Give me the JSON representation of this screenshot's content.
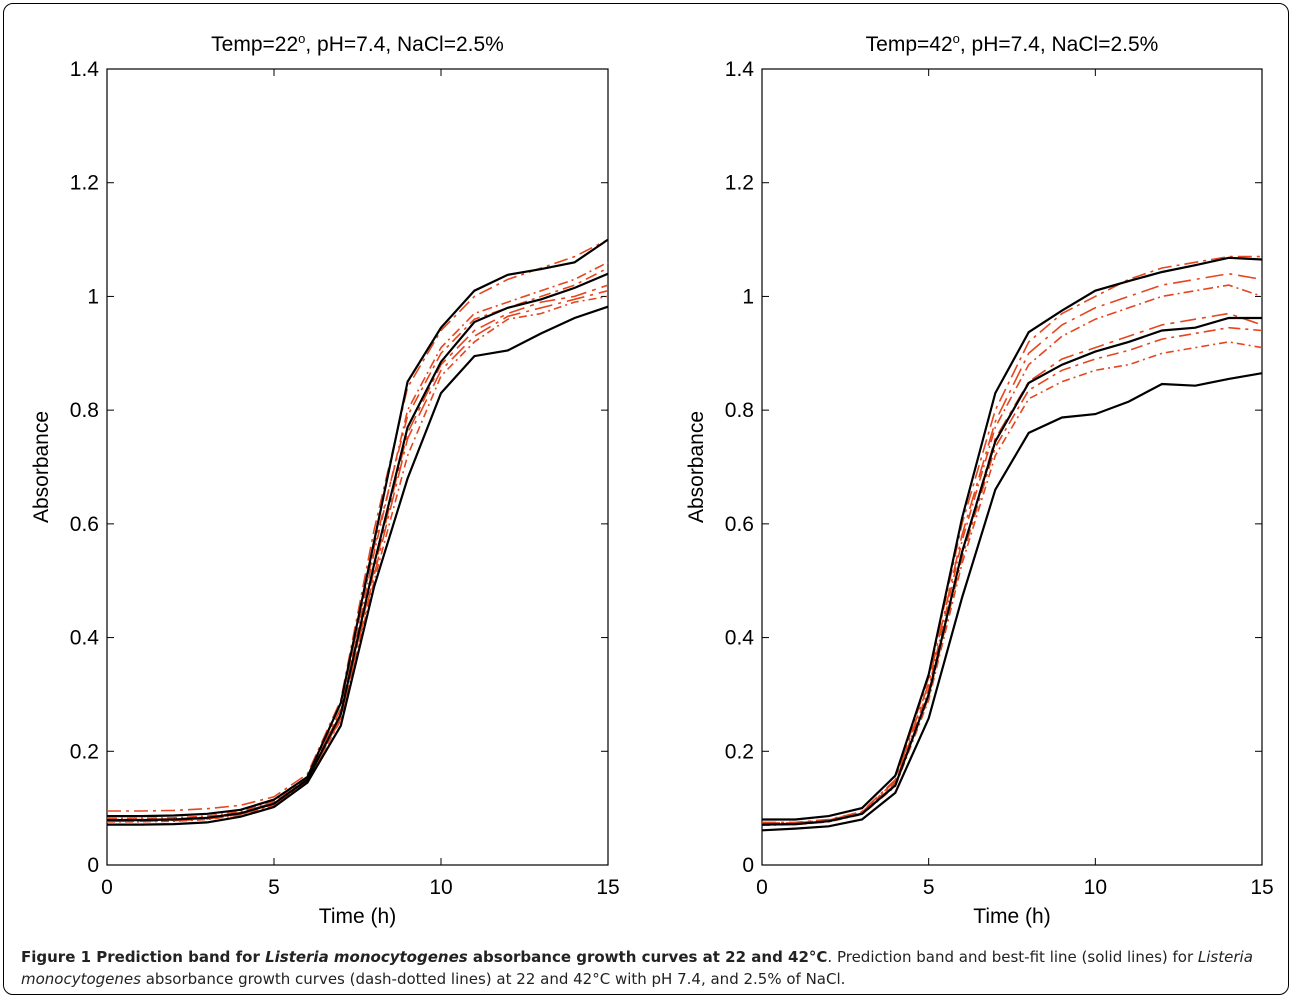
{
  "chart_data": [
    {
      "type": "line",
      "title_prefix": "Temp=22",
      "title_superscript": "o",
      "title_suffix": ", pH=7.4, NaCl=2.5%",
      "xlabel": "Time (h)",
      "ylabel": "Absorbance",
      "xlim": [
        0,
        15
      ],
      "ylim": [
        0,
        1.4
      ],
      "xticks": [
        "0",
        "5",
        "10",
        "15"
      ],
      "yticks": [
        "0",
        "0.2",
        "0.4",
        "0.6",
        "0.8",
        "1",
        "1.2",
        "1.4"
      ],
      "x": [
        0,
        1,
        2,
        3,
        4,
        5,
        6,
        7,
        8,
        9,
        10,
        11,
        12,
        13,
        14,
        15
      ],
      "upper_band": [
        0.086,
        0.086,
        0.087,
        0.09,
        0.097,
        0.115,
        0.155,
        0.285,
        0.57,
        0.85,
        0.945,
        1.01,
        1.038,
        1.048,
        1.06,
        1.1
      ],
      "best_fit": [
        0.079,
        0.079,
        0.08,
        0.083,
        0.091,
        0.108,
        0.15,
        0.265,
        0.53,
        0.77,
        0.885,
        0.955,
        0.98,
        0.995,
        1.015,
        1.04
      ],
      "lower_band": [
        0.071,
        0.071,
        0.072,
        0.075,
        0.085,
        0.102,
        0.145,
        0.245,
        0.49,
        0.68,
        0.83,
        0.895,
        0.905,
        0.935,
        0.962,
        0.982
      ],
      "curves": [
        [
          0.095,
          0.095,
          0.096,
          0.099,
          0.105,
          0.12,
          0.16,
          0.29,
          0.59,
          0.84,
          0.94,
          1.0,
          1.03,
          1.05,
          1.07,
          1.1
        ],
        [
          0.082,
          0.082,
          0.083,
          0.086,
          0.094,
          0.112,
          0.153,
          0.27,
          0.55,
          0.8,
          0.91,
          0.97,
          0.99,
          1.01,
          1.03,
          1.06
        ],
        [
          0.078,
          0.078,
          0.079,
          0.082,
          0.09,
          0.107,
          0.149,
          0.26,
          0.52,
          0.76,
          0.88,
          0.94,
          0.97,
          0.99,
          1.0,
          1.02
        ],
        [
          0.076,
          0.076,
          0.077,
          0.08,
          0.088,
          0.105,
          0.148,
          0.255,
          0.5,
          0.72,
          0.86,
          0.92,
          0.96,
          0.97,
          0.99,
          1.0
        ],
        [
          0.08,
          0.08,
          0.081,
          0.084,
          0.092,
          0.11,
          0.152,
          0.275,
          0.56,
          0.79,
          0.9,
          0.96,
          0.98,
          1.0,
          1.02,
          1.05
        ],
        [
          0.077,
          0.077,
          0.078,
          0.081,
          0.089,
          0.106,
          0.147,
          0.258,
          0.51,
          0.75,
          0.87,
          0.93,
          0.965,
          0.98,
          0.995,
          1.01
        ]
      ]
    },
    {
      "type": "line",
      "title_prefix": "Temp=42",
      "title_superscript": "o",
      "title_suffix": ", pH=7.4, NaCl=2.5%",
      "xlabel": "Time (h)",
      "ylabel": "Absorbance",
      "xlim": [
        0,
        15
      ],
      "ylim": [
        0,
        1.4
      ],
      "xticks": [
        "0",
        "5",
        "10",
        "15"
      ],
      "yticks": [
        "0",
        "0.2",
        "0.4",
        "0.6",
        "0.8",
        "1",
        "1.2",
        "1.4"
      ],
      "x": [
        0,
        1,
        2,
        3,
        4,
        5,
        6,
        7,
        8,
        9,
        10,
        11,
        12,
        13,
        14,
        15
      ],
      "upper_band": [
        0.08,
        0.08,
        0.086,
        0.1,
        0.157,
        0.335,
        0.61,
        0.83,
        0.937,
        0.975,
        1.01,
        1.027,
        1.043,
        1.055,
        1.068,
        1.065
      ],
      "best_fit": [
        0.071,
        0.072,
        0.077,
        0.09,
        0.14,
        0.3,
        0.55,
        0.745,
        0.848,
        0.88,
        0.903,
        0.92,
        0.94,
        0.945,
        0.962,
        0.962
      ],
      "lower_band": [
        0.061,
        0.064,
        0.068,
        0.08,
        0.127,
        0.258,
        0.47,
        0.66,
        0.76,
        0.787,
        0.793,
        0.815,
        0.846,
        0.843,
        0.855,
        0.865
      ],
      "curves": [
        [
          0.075,
          0.075,
          0.08,
          0.094,
          0.15,
          0.33,
          0.6,
          0.8,
          0.92,
          0.97,
          1.0,
          1.03,
          1.05,
          1.06,
          1.07,
          1.07
        ],
        [
          0.073,
          0.073,
          0.078,
          0.092,
          0.145,
          0.31,
          0.57,
          0.77,
          0.88,
          0.93,
          0.96,
          0.98,
          1.0,
          1.01,
          1.02,
          1.0
        ],
        [
          0.072,
          0.072,
          0.077,
          0.091,
          0.142,
          0.3,
          0.55,
          0.75,
          0.85,
          0.89,
          0.91,
          0.93,
          0.95,
          0.96,
          0.97,
          0.95
        ],
        [
          0.07,
          0.071,
          0.076,
          0.089,
          0.138,
          0.29,
          0.53,
          0.72,
          0.82,
          0.85,
          0.87,
          0.88,
          0.9,
          0.91,
          0.92,
          0.91
        ],
        [
          0.071,
          0.071,
          0.076,
          0.09,
          0.14,
          0.295,
          0.54,
          0.735,
          0.835,
          0.87,
          0.89,
          0.905,
          0.925,
          0.935,
          0.945,
          0.94
        ],
        [
          0.074,
          0.074,
          0.079,
          0.093,
          0.148,
          0.32,
          0.58,
          0.78,
          0.9,
          0.95,
          0.98,
          1.0,
          1.02,
          1.03,
          1.04,
          1.03
        ]
      ]
    }
  ],
  "colors": {
    "band": "#000000",
    "curves": "#e5461f"
  },
  "caption": {
    "figure_label": "Figure 1 Prediction band for ",
    "species_bold": "Listeria monocytogenes",
    "title_rest": " absorbance growth curves at 22 and 42°C",
    "text_1": ". Prediction band and best-fit line (solid lines) for ",
    "species_italic": "Listeria monocytogenes",
    "text_2": " absorbance growth curves (dash-dotted lines) at 22 and 42°C with pH 7.4, and 2.5% of NaCl."
  }
}
